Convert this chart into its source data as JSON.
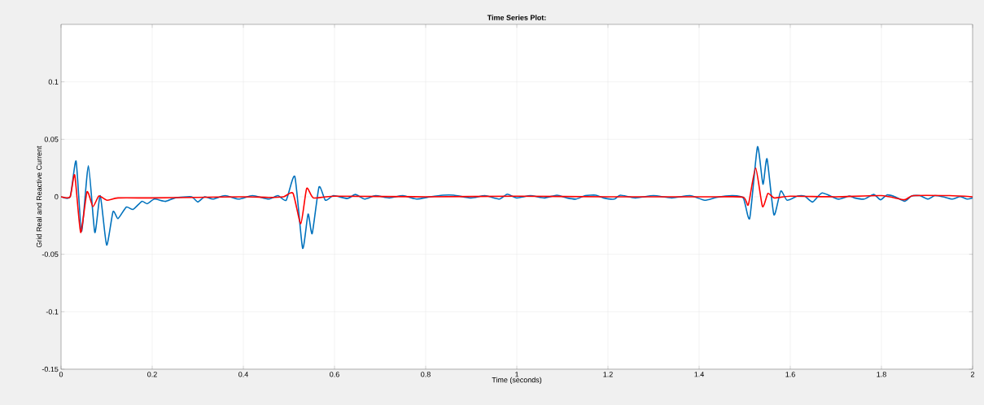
{
  "chart_data": {
    "type": "line",
    "title": "Time Series Plot:",
    "xlabel": "Time (seconds)",
    "ylabel": "Grid Real and Reactive Current",
    "xlim": [
      0,
      2
    ],
    "ylim": [
      -0.15,
      0.15
    ],
    "xticks": [
      0,
      0.2,
      0.4,
      0.6,
      0.8,
      1,
      1.2,
      1.4,
      1.6,
      1.8,
      2
    ],
    "yticks": [
      -0.15,
      -0.1,
      -0.05,
      0,
      0.05,
      0.1
    ],
    "grid": true,
    "series": [
      {
        "color": "#0072bd",
        "x": [
          0,
          0.02,
          0.033,
          0.045,
          0.06,
          0.074,
          0.086,
          0.1,
          0.114,
          0.125,
          0.143,
          0.158,
          0.177,
          0.189,
          0.205,
          0.229,
          0.25,
          0.286,
          0.3,
          0.315,
          0.333,
          0.36,
          0.39,
          0.42,
          0.455,
          0.476,
          0.494,
          0.513,
          0.53,
          0.542,
          0.551,
          0.566,
          0.58,
          0.598,
          0.628,
          0.646,
          0.666,
          0.69,
          0.72,
          0.75,
          0.78,
          0.81,
          0.838,
          0.862,
          0.9,
          0.93,
          0.962,
          0.979,
          1.0,
          1.03,
          1.06,
          1.088,
          1.11,
          1.13,
          1.15,
          1.173,
          1.19,
          1.214,
          1.227,
          1.26,
          1.3,
          1.34,
          1.38,
          1.412,
          1.438,
          1.473,
          1.497,
          1.511,
          1.528,
          1.54,
          1.549,
          1.564,
          1.579,
          1.593,
          1.616,
          1.632,
          1.649,
          1.67,
          1.705,
          1.729,
          1.741,
          1.762,
          1.783,
          1.798,
          1.812,
          1.83,
          1.851,
          1.866,
          1.884,
          1.902,
          1.917,
          1.935,
          1.955,
          1.973,
          1.988,
          2.0
        ],
        "values": [
          0,
          0,
          0.031,
          -0.03,
          0.027,
          -0.031,
          0.001,
          -0.042,
          -0.013,
          -0.019,
          -0.009,
          -0.011,
          -0.004,
          -0.006,
          -0.002,
          -0.004,
          -0.001,
          0,
          -0.0045,
          0,
          -0.002,
          0.001,
          -0.002,
          0.001,
          -0.002,
          0.001,
          -0.003,
          0.0175,
          -0.0447,
          -0.015,
          -0.032,
          0.0085,
          -0.003,
          0.001,
          -0.0015,
          0.002,
          -0.002,
          0.001,
          -0.001,
          0.001,
          -0.002,
          0,
          0.0014,
          0.0014,
          -0.001,
          0.001,
          -0.002,
          0.0023,
          -0.001,
          0.001,
          -0.001,
          0.0014,
          -0.001,
          -0.002,
          0.001,
          0.0014,
          -0.001,
          -0.002,
          0.0014,
          -0.001,
          0.001,
          -0.001,
          0.001,
          -0.003,
          -0.0005,
          0.001,
          -0.001,
          -0.0187,
          0.0435,
          0.011,
          0.033,
          -0.0156,
          0.005,
          -0.003,
          0.0007,
          0.0005,
          -0.0045,
          0.0033,
          -0.002,
          0.0007,
          -0.001,
          -0.002,
          0.002,
          -0.0026,
          0.0016,
          0,
          -0.0038,
          0.0007,
          0.001,
          -0.002,
          0.001,
          0,
          -0.002,
          0.0002,
          -0.002,
          -0.001
        ]
      },
      {
        "color": "#ff0000",
        "x": [
          0,
          0.02,
          0.03,
          0.043,
          0.057,
          0.07,
          0.083,
          0.101,
          0.125,
          0.2,
          0.3,
          0.4,
          0.455,
          0.488,
          0.509,
          0.526,
          0.539,
          0.554,
          0.6,
          0.8,
          1.0,
          1.2,
          1.438,
          1.497,
          1.508,
          1.524,
          1.539,
          1.551,
          1.565,
          1.6,
          1.7,
          1.8,
          1.85,
          1.87,
          1.95,
          2.0
        ],
        "values": [
          0,
          0,
          0.019,
          -0.031,
          0.0043,
          -0.0085,
          0.0007,
          -0.003,
          -0.001,
          -0.001,
          -0.0005,
          0,
          -0.0005,
          0,
          0.003,
          -0.0234,
          0.0073,
          -0.001,
          0.0005,
          0,
          0.0005,
          0,
          0,
          -0.0003,
          -0.0069,
          0.025,
          -0.0085,
          0.003,
          -0.001,
          0.0005,
          0,
          0.001,
          -0.0026,
          0.001,
          0.001,
          0
        ]
      }
    ]
  }
}
